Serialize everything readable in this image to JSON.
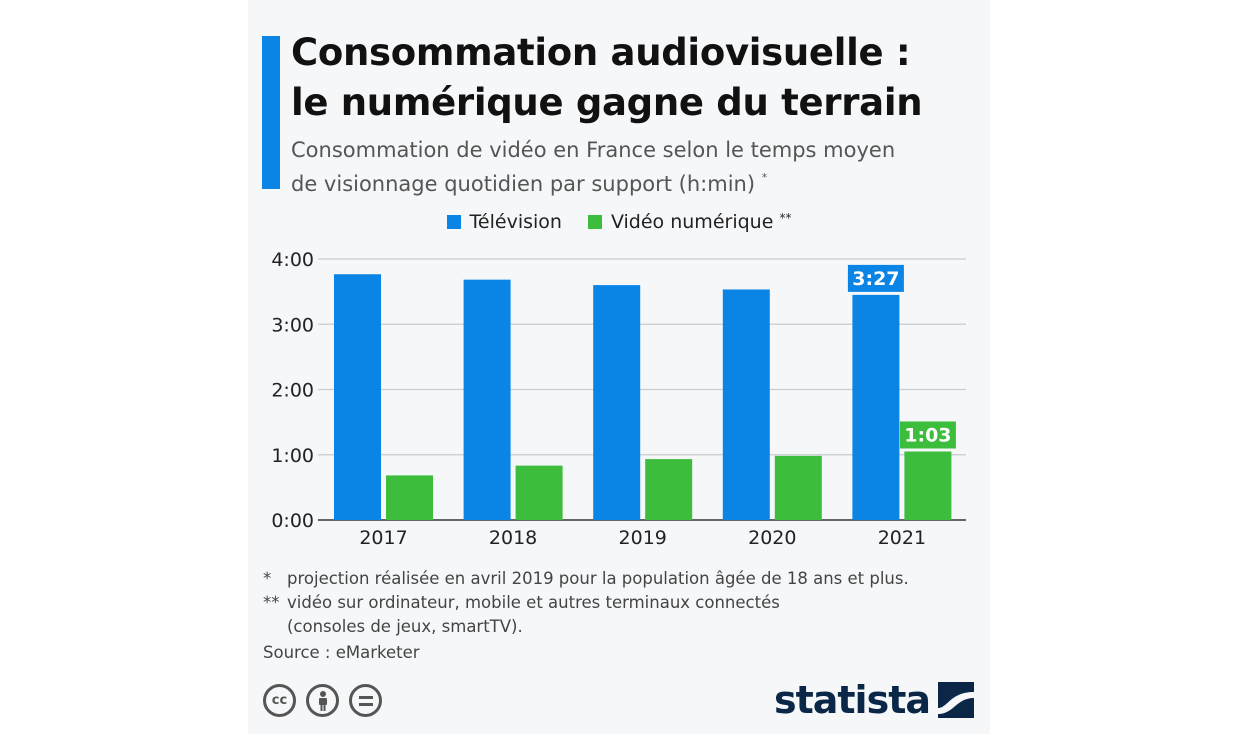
{
  "header": {
    "title_line1": "Consommation audiovisuelle :",
    "title_line2": "le numérique gagne du terrain",
    "subtitle_line1": "Consommation de vidéo en France selon le temps moyen",
    "subtitle_line2": "de visionnage quotidien par support (h:min)",
    "subtitle_mark": "*"
  },
  "legend": {
    "tv_label": "Télévision",
    "digital_label": "Vidéo numérique",
    "digital_mark": "**"
  },
  "colors": {
    "tv": "#0a85e6",
    "digital": "#3cbd3c",
    "grid": "#c9cdd2",
    "axis": "#333333"
  },
  "chart_data": {
    "type": "bar",
    "categories": [
      "2017",
      "2018",
      "2019",
      "2020",
      "2021"
    ],
    "series": [
      {
        "name": "Télévision",
        "values": [
          226,
          221,
          216,
          212,
          207
        ]
      },
      {
        "name": "Vidéo numérique",
        "values": [
          41,
          50,
          56,
          59,
          63
        ]
      }
    ],
    "value_unit": "minutes",
    "ylim": [
      0,
      240
    ],
    "yticks": [
      0,
      60,
      120,
      180,
      240
    ],
    "ytick_labels": [
      "0:00",
      "1:00",
      "2:00",
      "3:00",
      "4:00"
    ],
    "data_labels": [
      {
        "series": 0,
        "category": "2021",
        "text": "3:27"
      },
      {
        "series": 1,
        "category": "2021",
        "text": "1:03"
      }
    ],
    "grid": true,
    "legend_position": "top-center"
  },
  "notes": {
    "note1_mark": "*",
    "note1_text": "projection réalisée en avril 2019 pour la population âgée de 18 ans et plus.",
    "note2_mark": "**",
    "note2_text_line1": "vidéo sur ordinateur, mobile et autres terminaux connectés",
    "note2_text_line2": "(consoles de jeux, smartTV).",
    "source": "Source : eMarketer"
  },
  "footer": {
    "cc_label": "cc",
    "logo_text": "statista",
    "icons": [
      "creative-commons-icon",
      "attribution-icon",
      "no-derivatives-icon",
      "statista-logo-icon"
    ]
  }
}
